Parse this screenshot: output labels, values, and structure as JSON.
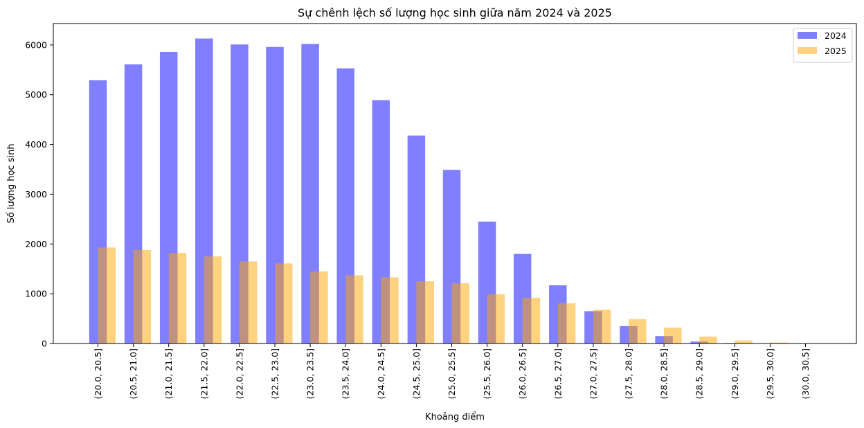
{
  "chart_data": {
    "type": "bar",
    "title": "Sự chênh lệch số lượng học sinh giữa năm 2024 và 2025",
    "xlabel": "Khoảng điểm",
    "ylabel": "Số lượng học sinh",
    "ylim": [
      0,
      6430
    ],
    "yticks": [
      0,
      1000,
      2000,
      3000,
      4000,
      5000,
      6000
    ],
    "grid": false,
    "legend_position": "top-right",
    "categories": [
      "(20.0, 20.5]",
      "(20.5, 21.0]",
      "(21.0, 21.5]",
      "(21.5, 22.0]",
      "(22.0, 22.5]",
      "(22.5, 23.0]",
      "(23.0, 23.5]",
      "(23.5, 24.0]",
      "(24.0, 24.5]",
      "(24.5, 25.0]",
      "(25.0, 25.5]",
      "(25.5, 26.0]",
      "(26.0, 26.5]",
      "(26.5, 27.0]",
      "(27.0, 27.5]",
      "(27.5, 28.0]",
      "(28.0, 28.5]",
      "(28.5, 29.0]",
      "(29.0, 29.5]",
      "(29.5, 30.0]",
      "(30.0, 30.5]"
    ],
    "series": [
      {
        "name": "2024",
        "color": "#0000ff",
        "opacity": 0.5,
        "values": [
          5290,
          5610,
          5860,
          6130,
          6010,
          5960,
          6020,
          5530,
          4890,
          4180,
          3490,
          2450,
          1800,
          1170,
          650,
          350,
          150,
          40,
          10,
          5,
          0
        ]
      },
      {
        "name": "2025",
        "color": "#ffa500",
        "opacity": 0.5,
        "values": [
          1930,
          1880,
          1820,
          1750,
          1650,
          1610,
          1450,
          1370,
          1330,
          1250,
          1210,
          990,
          920,
          810,
          680,
          490,
          320,
          140,
          60,
          20,
          5
        ]
      }
    ]
  }
}
